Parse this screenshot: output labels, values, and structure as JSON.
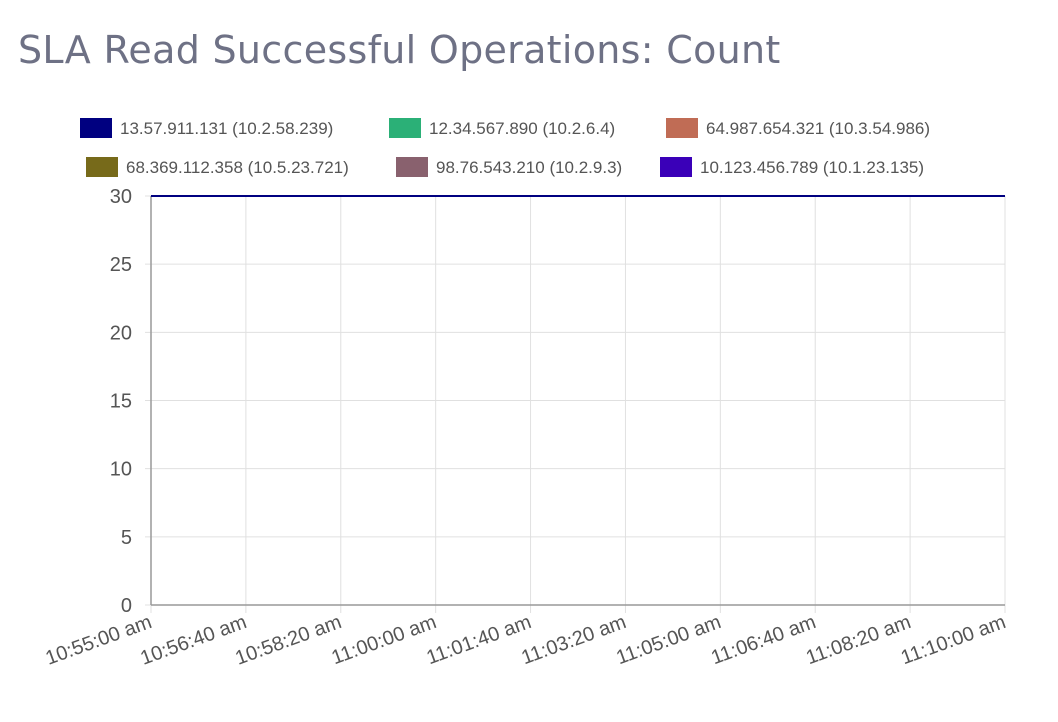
{
  "chart_data": {
    "type": "line",
    "title": "SLA Read Successful Operations: Count",
    "ylim": [
      0,
      30
    ],
    "yticks": [
      "0",
      "5",
      "10",
      "15",
      "20",
      "25",
      "30"
    ],
    "xticks": [
      "10:55:00 am",
      "10:56:40 am",
      "10:58:20 am",
      "11:00:00 am",
      "11:01:40 am",
      "11:03:20 am",
      "11:05:00 am",
      "11:06:40 am",
      "11:08:20 am",
      "11:10:00 am"
    ],
    "grid": true,
    "legend": "top",
    "series": [
      {
        "name": "13.57.911.131 (10.2.58.239)",
        "color": "#000080",
        "points": [
          [
            "10:55:00 am",
            30
          ],
          [
            "11:10:00 am",
            30
          ]
        ]
      },
      {
        "name": "12.34.567.890 (10.2.6.4)",
        "color": "#2bb077",
        "points": [
          [
            "10:55:00 am",
            30
          ],
          [
            "11:10:00 am",
            30
          ]
        ]
      },
      {
        "name": "64.987.654.321 (10.3.54.986)",
        "color": "#c06c55",
        "points": [
          [
            "10:55:00 am",
            30
          ],
          [
            "11:10:00 am",
            30
          ]
        ]
      },
      {
        "name": "68.369.112.358 (10.5.23.721)",
        "color": "#776a1a",
        "points": [
          [
            "10:55:00 am",
            30
          ],
          [
            "11:10:00 am",
            30
          ]
        ]
      },
      {
        "name": "98.76.543.210 (10.2.9.3)",
        "color": "#89616e",
        "points": [
          [
            "10:55:00 am",
            30
          ],
          [
            "11:10:00 am",
            30
          ]
        ]
      },
      {
        "name": "10.123.456.789 (10.1.23.135)",
        "color": "#3a00b8",
        "points": [
          [
            "10:55:00 am",
            30
          ],
          [
            "11:10:00 am",
            30
          ]
        ]
      }
    ]
  }
}
